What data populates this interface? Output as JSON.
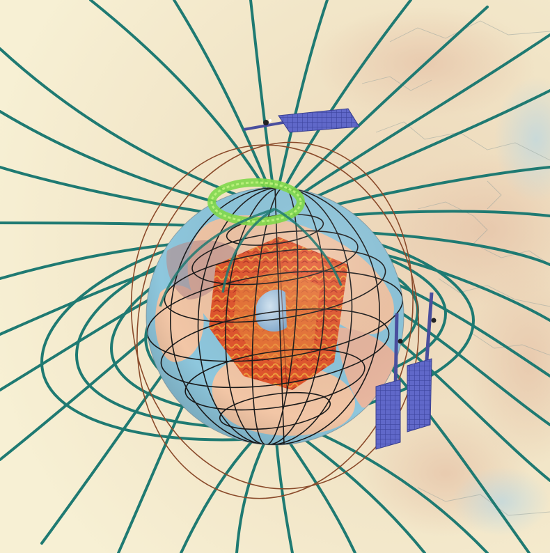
{
  "colors": {
    "background_light": "#f6eed2",
    "background_relief": "#e8d3b4",
    "field_line": "#1f7a72",
    "orbit_line": "#8a4a2a",
    "ocean": "#8ec7dd",
    "land": "#f2c6a6",
    "mantle": "#e2502a",
    "outer_core": "#ee7a38",
    "inner_core": "#a9cdea",
    "aurora": "#7fd84a",
    "satellite": "#5a63c8",
    "graticule": "#1a1a1a"
  },
  "icons": {
    "satellite": "satellite-icon",
    "earth": "earth-globe-icon",
    "aurora": "aurora-oval-icon"
  },
  "satellite_count": 3
}
